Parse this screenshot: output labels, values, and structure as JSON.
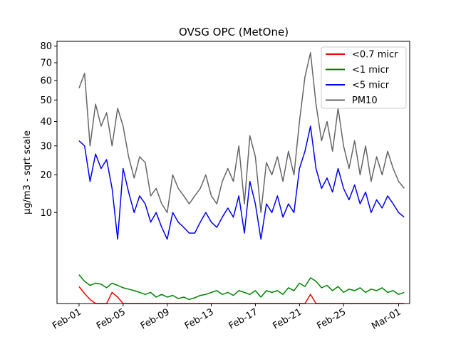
{
  "chart_data": {
    "type": "line",
    "title": "OVSG OPC (MetOne)",
    "xlabel": "",
    "ylabel": "µg/m3 - sqrt scale",
    "y_scale": "sqrt",
    "ylim": [
      0,
      83
    ],
    "xlim": [
      "2020-01-30",
      "2020-03-02"
    ],
    "x_ticks": [
      "Feb-01",
      "Feb-05",
      "Feb-09",
      "Feb-13",
      "Feb-17",
      "Feb-21",
      "Feb-25",
      "Mar-01"
    ],
    "x_tick_dates": [
      "2020-02-01",
      "2020-02-05",
      "2020-02-09",
      "2020-02-13",
      "2020-02-17",
      "2020-02-21",
      "2020-02-25",
      "2020-03-01"
    ],
    "y_ticks": [
      10,
      20,
      30,
      40,
      50,
      60,
      70,
      80
    ],
    "grid": false,
    "legend_position": "top-right",
    "x_dates": [
      "2020-02-01",
      "2020-02-01",
      "2020-02-02",
      "2020-02-02",
      "2020-02-03",
      "2020-02-03",
      "2020-02-04",
      "2020-02-04",
      "2020-02-05",
      "2020-02-05",
      "2020-02-06",
      "2020-02-06",
      "2020-02-07",
      "2020-02-07",
      "2020-02-08",
      "2020-02-08",
      "2020-02-09",
      "2020-02-09",
      "2020-02-10",
      "2020-02-10",
      "2020-02-11",
      "2020-02-11",
      "2020-02-12",
      "2020-02-12",
      "2020-02-13",
      "2020-02-13",
      "2020-02-14",
      "2020-02-14",
      "2020-02-15",
      "2020-02-15",
      "2020-02-16",
      "2020-02-16",
      "2020-02-17",
      "2020-02-17",
      "2020-02-18",
      "2020-02-18",
      "2020-02-19",
      "2020-02-19",
      "2020-02-20",
      "2020-02-20",
      "2020-02-21",
      "2020-02-21",
      "2020-02-22",
      "2020-02-22",
      "2020-02-23",
      "2020-02-23",
      "2020-02-24",
      "2020-02-24",
      "2020-02-25",
      "2020-02-25",
      "2020-02-26",
      "2020-02-26",
      "2020-02-27",
      "2020-02-27",
      "2020-02-28",
      "2020-02-28",
      "2020-02-29",
      "2020-02-29",
      "2020-03-01",
      "2020-03-01"
    ],
    "x_times": [
      "00:00",
      "12:00",
      "00:00",
      "12:00",
      "00:00",
      "12:00",
      "00:00",
      "12:00",
      "00:00",
      "12:00",
      "00:00",
      "12:00",
      "00:00",
      "12:00",
      "00:00",
      "12:00",
      "00:00",
      "12:00",
      "00:00",
      "12:00",
      "00:00",
      "12:00",
      "00:00",
      "12:00",
      "00:00",
      "12:00",
      "00:00",
      "12:00",
      "00:00",
      "12:00",
      "00:00",
      "12:00",
      "00:00",
      "12:00",
      "00:00",
      "12:00",
      "00:00",
      "12:00",
      "00:00",
      "12:00",
      "00:00",
      "12:00",
      "00:00",
      "12:00",
      "00:00",
      "12:00",
      "00:00",
      "12:00",
      "00:00",
      "12:00",
      "00:00",
      "12:00",
      "00:00",
      "12:00",
      "00:00",
      "12:00",
      "00:00",
      "12:00",
      "00:00",
      "12:00"
    ],
    "series": [
      {
        "name": "<0.7 micr",
        "color": "#ff0000",
        "values": [
          0.35,
          0.12,
          0.02,
          0.0,
          0.0,
          0.0,
          0.15,
          0.05,
          0.0,
          0.0,
          0.0,
          0.0,
          0.0,
          0.0,
          0.0,
          0.0,
          0.0,
          0.0,
          0.0,
          0.0,
          0.0,
          0.0,
          0.0,
          0.0,
          0.0,
          0.0,
          0.0,
          0.0,
          0.0,
          0.0,
          0.0,
          0.0,
          0.0,
          0.0,
          0.0,
          0.0,
          0.0,
          0.0,
          0.0,
          0.0,
          0.0,
          0.0,
          0.1,
          0.0,
          0.0,
          0.0,
          0.0,
          0.0,
          0.0,
          0.0,
          0.0,
          0.0,
          0.0,
          0.0,
          0.0,
          0.0,
          0.0,
          0.0,
          0.0,
          0.0
        ]
      },
      {
        "name": "<1 micr",
        "color": "#008000",
        "values": [
          1.0,
          0.6,
          0.4,
          0.5,
          0.45,
          0.3,
          0.5,
          0.4,
          0.3,
          0.25,
          0.2,
          0.15,
          0.1,
          0.15,
          0.05,
          0.1,
          0.05,
          0.08,
          0.03,
          0.05,
          0.02,
          0.04,
          0.08,
          0.1,
          0.15,
          0.2,
          0.1,
          0.15,
          0.08,
          0.2,
          0.15,
          0.1,
          0.2,
          0.05,
          0.2,
          0.15,
          0.2,
          0.1,
          0.3,
          0.2,
          0.5,
          0.35,
          0.8,
          0.6,
          0.3,
          0.4,
          0.2,
          0.35,
          0.15,
          0.25,
          0.2,
          0.3,
          0.15,
          0.25,
          0.2,
          0.3,
          0.15,
          0.2,
          0.1,
          0.15
        ]
      },
      {
        "name": "<5 micr",
        "color": "#0000ff",
        "values": [
          32,
          30,
          18,
          27,
          22,
          25,
          16,
          5,
          22,
          15,
          10,
          14,
          12,
          8,
          10,
          7,
          5,
          10,
          8,
          7,
          6,
          6,
          8,
          10,
          8,
          7,
          9,
          11,
          9,
          14,
          6,
          18,
          12,
          5,
          12,
          10,
          14,
          9,
          12,
          10,
          22,
          28,
          38,
          22,
          16,
          19,
          15,
          22,
          16,
          13,
          17,
          12,
          15,
          10,
          13,
          11,
          14,
          12,
          10,
          9
        ]
      },
      {
        "name": "PM10",
        "color": "#666666",
        "values": [
          56,
          64,
          30,
          48,
          38,
          44,
          30,
          46,
          38,
          26,
          19,
          26,
          24,
          14,
          16,
          12,
          10,
          20,
          16,
          14,
          12,
          14,
          16,
          20,
          14,
          12,
          18,
          22,
          18,
          30,
          12,
          34,
          26,
          10,
          24,
          20,
          26,
          18,
          28,
          20,
          40,
          62,
          76,
          48,
          32,
          40,
          28,
          46,
          30,
          22,
          32,
          20,
          30,
          18,
          26,
          20,
          28,
          22,
          18,
          16
        ]
      }
    ]
  }
}
